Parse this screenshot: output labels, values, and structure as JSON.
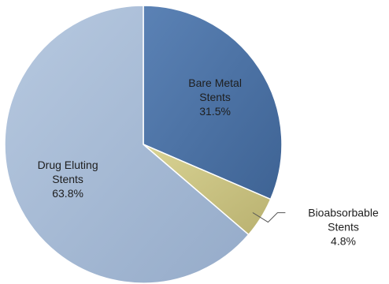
{
  "chart_data": {
    "type": "pie",
    "slices": [
      {
        "category": "Bare Metal Stents",
        "value": 31.5,
        "label_lines": [
          "Bare Metal",
          "Stents",
          "31.5%"
        ],
        "color": "#4e73a3",
        "label_position": "inside"
      },
      {
        "category": "Bioabsorbable Stents",
        "value": 4.8,
        "label_lines": [
          "Bioabsorbable",
          "Stents",
          "4.8%"
        ],
        "color": "#ccc585",
        "label_position": "outside-right"
      },
      {
        "category": "Drug Eluting Stents",
        "value": 63.8,
        "label_lines": [
          "Drug Eluting",
          "Stents",
          "63.8%"
        ],
        "color": "#a6bbd6",
        "label_position": "inside"
      }
    ],
    "start_angle": "12 o'clock",
    "direction": "clockwise",
    "legend": "none"
  }
}
